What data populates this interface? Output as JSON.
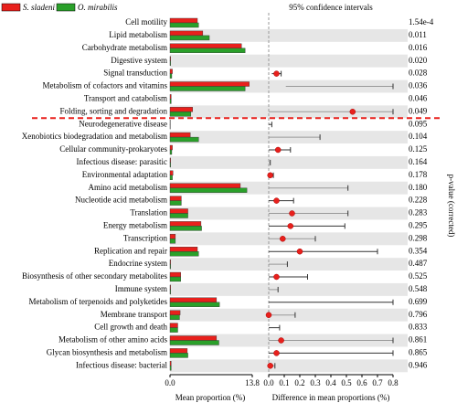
{
  "chart_data": {
    "type": "extended_error_bar",
    "categories": [
      "Cell motility",
      "Lipid metabolism",
      "Carbohydrate metabolism",
      "Digestive system",
      "Signal transduction",
      "Metabolism of cofactors and vitamins",
      "Transport and catabolism",
      "Folding, sorting and degradation",
      "Neurodegenerative disease",
      "Xenobiotics biodegradation and metabolism",
      "Cellular community-prokaryotes",
      "Infectious disease: parasitic",
      "Environmental adaptation",
      "Amino acid metabolism",
      "Nucleotide acid metabolism",
      "Translation",
      "Energy metabolism",
      "Transcription",
      "Replication and repair",
      "Endocrine system",
      "Biosynthesis of other secondary metabolites",
      "Immune system",
      "Metabolism of terpenoids and polyketides",
      "Membrane transport",
      "Cell growth and death",
      "Metabolism of other amino acids",
      "Glycan biosynthesis and metabolism",
      "Infectious disease: bacterial"
    ],
    "series": [
      {
        "name": "S. sladeni",
        "color": "#e8201c",
        "values": [
          4.6,
          5.5,
          12.0,
          0.1,
          0.4,
          13.3,
          0.2,
          3.8,
          0.05,
          3.4,
          0.4,
          0.1,
          0.5,
          11.8,
          1.9,
          3.0,
          5.2,
          0.9,
          4.6,
          0.1,
          1.8,
          0.1,
          7.8,
          1.7,
          1.3,
          7.8,
          2.9,
          0.2
        ]
      },
      {
        "name": "O. mirabilis",
        "color": "#2aa02a",
        "values": [
          4.8,
          6.6,
          12.6,
          0.1,
          0.3,
          12.6,
          0.2,
          3.5,
          0.05,
          4.8,
          0.3,
          0.1,
          0.4,
          12.9,
          1.9,
          3.0,
          5.3,
          0.9,
          4.8,
          0.1,
          1.8,
          0.1,
          8.3,
          1.6,
          1.3,
          8.2,
          3.0,
          0.2
        ]
      }
    ],
    "xlim": [
      0,
      13.8
    ],
    "xticks": [
      {
        "value": 0,
        "label": "0.0"
      },
      13.8
    ],
    "xlabel": "Mean proportion (%)",
    "diff_title": "95% confidence intervals",
    "diff_xlabel": "Difference in mean proportions (%)",
    "diff_values": [
      null,
      null,
      null,
      null,
      0.05,
      null,
      null,
      0.54,
      null,
      null,
      0.06,
      null,
      0.01,
      null,
      0.05,
      0.15,
      0.14,
      0.09,
      0.2,
      null,
      0.05,
      null,
      null,
      0.0,
      null,
      0.08,
      0.05,
      0.01
    ],
    "ci_low": [
      null,
      null,
      null,
      null,
      0.02,
      0.11,
      null,
      0.0,
      0.0,
      0.0,
      0.0,
      0.0,
      0.0,
      0.0,
      0.0,
      0.0,
      0.0,
      0.0,
      0.0,
      0.0,
      0.0,
      0.0,
      0.0,
      0.0,
      0.0,
      0.0,
      0.0,
      0.0
    ],
    "ci_high": [
      null,
      null,
      null,
      null,
      0.08,
      0.8,
      null,
      0.8,
      0.02,
      0.33,
      0.14,
      0.01,
      0.03,
      0.51,
      0.16,
      0.51,
      0.49,
      0.3,
      0.7,
      0.12,
      0.25,
      0.06,
      0.8,
      0.17,
      0.07,
      0.8,
      0.8,
      0.04
    ],
    "diff_xlim": [
      0,
      0.8
    ],
    "diff_xticks": [
      {
        "value": 0,
        "label": "0.0"
      },
      0.1,
      0.2,
      0.3,
      0.4,
      0.5,
      0.6,
      0.7,
      0.8
    ],
    "point_color": "#e8201c",
    "p_values": [
      0.000154,
      0.011,
      0.016,
      0.02,
      0.028,
      0.036,
      0.046,
      0.049,
      0.095,
      0.104,
      0.125,
      0.164,
      0.178,
      0.18,
      0.228,
      0.283,
      0.295,
      0.298,
      0.354,
      0.487,
      0.525,
      0.548,
      0.699,
      0.796,
      0.833,
      0.861,
      0.865,
      0.946
    ],
    "p_value_labels": [
      "1.54e-4",
      "0.011",
      "0.016",
      "0.020",
      "0.028",
      "0.036",
      "0.046",
      "0.049",
      "0.095",
      "0.104",
      "0.125",
      "0.164",
      "0.178",
      "0.180",
      "0.228",
      "0.283",
      "0.295",
      "0.298",
      "0.354",
      "0.487",
      "0.525",
      "0.548",
      "0.699",
      "0.796",
      "0.833",
      "0.861",
      "0.865",
      "0.946"
    ],
    "p_label": "p-value (corrected)"
  }
}
